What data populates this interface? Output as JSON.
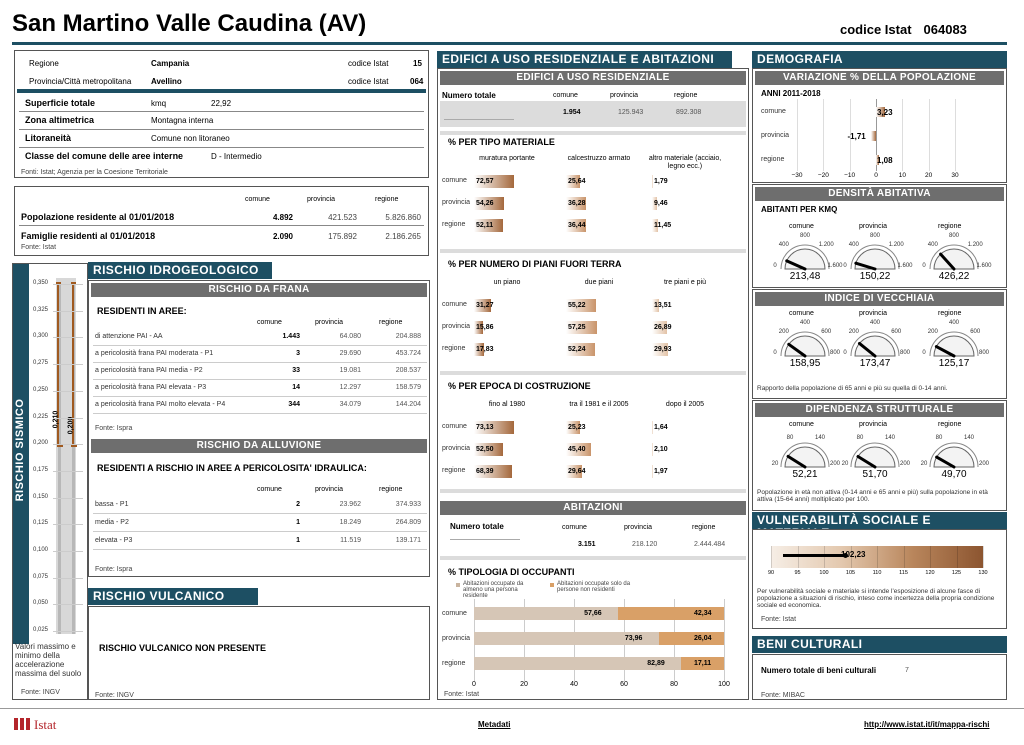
{
  "title": "San Martino Valle Caudina (AV)",
  "istat_label": "codice Istat",
  "istat_code": "064083",
  "info": {
    "regione_l": "Regione",
    "regione": "Campania",
    "codice_l": "codice Istat",
    "codice_reg": "15",
    "prov_l": "Provincia/Città metropolitana",
    "prov": "Avellino",
    "codice_prov": "064",
    "sup_l": "Superficie totale",
    "sup_u": "kmq",
    "sup": "22,92",
    "zona_l": "Zona altimetrica",
    "zona": "Montagna interna",
    "lit_l": "Litoraneità",
    "lit": "Comune non litoraneo",
    "cls_l": "Classe del comune delle aree interne",
    "cls": "D - Intermedio",
    "fonte": "Fonti: Istat; Agenzia per la Coesione Territoriale"
  },
  "pop": {
    "h": [
      "comune",
      "provincia",
      "regione"
    ],
    "r1": {
      "l": "Popolazione residente al 01/01/2018",
      "v": [
        "4.892",
        "421.523",
        "5.826.860"
      ]
    },
    "r2": {
      "l": "Famiglie residenti al 01/01/2018",
      "v": [
        "2.090",
        "175.892",
        "2.186.265"
      ]
    },
    "fonte": "Fonte: Istat"
  },
  "sism": {
    "title": "RISCHIO SISMICO",
    "ticks": [
      "0,350",
      "0,325",
      "0,300",
      "0,275",
      "0,250",
      "0,225",
      "0,200",
      "0,175",
      "0,150",
      "0,125",
      "0,100",
      "0,075",
      "0,050",
      "0,025"
    ],
    "v": [
      "0,210",
      "0,200"
    ],
    "note": "Valori massimo e minimo della accelerazione massima del suolo",
    "fonte": "Fonte: INGV"
  },
  "idro": {
    "title": "RISCHIO IDROGEOLOGICO",
    "frana": "RISCHIO DA FRANA",
    "res": "RESIDENTI IN AREE:",
    "h": [
      "comune",
      "provincia",
      "regione"
    ],
    "rows": [
      {
        "l": "di attenzione PAI - AA",
        "v": [
          "1.443",
          "64.080",
          "204.888"
        ]
      },
      {
        "l": "a pericolosità frana PAI moderata - P1",
        "v": [
          "3",
          "29.690",
          "453.724"
        ]
      },
      {
        "l": "a pericolosità frana PAI media - P2",
        "v": [
          "33",
          "19.081",
          "208.537"
        ]
      },
      {
        "l": "a pericolosità frana PAI elevata - P3",
        "v": [
          "14",
          "12.297",
          "158.579"
        ]
      },
      {
        "l": "a pericolosità frana PAI molto elevata - P4",
        "v": [
          "344",
          "34.079",
          "144.204"
        ]
      }
    ],
    "fonte": "Fonte: Ispra",
    "all": "RISCHIO DA ALLUVIONE",
    "res2": "RESIDENTI A RISCHIO IN AREE A PERICOLOSITA' IDRAULICA:",
    "rows2": [
      {
        "l": "bassa - P1",
        "v": [
          "2",
          "23.962",
          "374.933"
        ]
      },
      {
        "l": "media - P2",
        "v": [
          "1",
          "18.249",
          "264.809"
        ]
      },
      {
        "l": "elevata - P3",
        "v": [
          "1",
          "11.519",
          "139.171"
        ]
      }
    ],
    "fonte2": "Fonte: Ispra"
  },
  "vulc": {
    "title": "RISCHIO VULCANICO",
    "text": "RISCHIO VULCANICO NON PRESENTE",
    "fonte": "Fonte: INGV"
  },
  "edif": {
    "title": "EDIFICI A USO RESIDENZIALE E ABITAZIONI",
    "sub": "EDIFICI A USO RESIDENZIALE",
    "nt": "Numero totale",
    "h": [
      "comune",
      "provincia",
      "regione"
    ],
    "v": [
      "1.954",
      "125.943",
      "892.308"
    ],
    "mat_t": "% PER TIPO MATERIALE",
    "mat_h": [
      "muratura portante",
      "calcestruzzo armato",
      "altro materiale (acciaio, legno ecc.)"
    ],
    "rl": [
      "comune",
      "provincia",
      "regione"
    ],
    "mat": [
      [
        "72,57",
        "25,64",
        "1,79"
      ],
      [
        "54,26",
        "36,28",
        "9,46"
      ],
      [
        "52,11",
        "36,44",
        "11,45"
      ]
    ],
    "pia_t": "% PER NUMERO DI PIANI FUORI TERRA",
    "pia_h": [
      "un piano",
      "due piani",
      "tre piani e più"
    ],
    "pia": [
      [
        "31,27",
        "55,22",
        "13,51"
      ],
      [
        "15,86",
        "57,25",
        "26,89"
      ],
      [
        "17,83",
        "52,24",
        "29,93"
      ]
    ],
    "epo_t": "% PER EPOCA DI COSTRUZIONE",
    "epo_h": [
      "fino al 1980",
      "tra il 1981 e il 2005",
      "dopo il 2005"
    ],
    "epo": [
      [
        "73,13",
        "25,23",
        "1,64"
      ],
      [
        "52,50",
        "45,40",
        "2,10"
      ],
      [
        "68,39",
        "29,64",
        "1,97"
      ]
    ],
    "ab": "ABITAZIONI",
    "ab_v": [
      "3.151",
      "218.120",
      "2.444.484"
    ],
    "occ_t": "% TIPOLOGIA DI OCCUPANTI",
    "occ_l1": "Abitazioni occupate da almeno una persona residente",
    "occ_l2": "Abitazioni occupate solo da persone non residenti",
    "occ": [
      [
        "57,66",
        "42,34"
      ],
      [
        "73,96",
        "26,04"
      ],
      [
        "82,89",
        "17,11"
      ]
    ],
    "axis": [
      "0",
      "20",
      "40",
      "60",
      "80",
      "100"
    ],
    "fonte": "Fonte: Istat"
  },
  "demo": {
    "title": "DEMOGRAFIA",
    "var": "VARIAZIONE % DELLA POPOLAZIONE",
    "anni": "ANNI 2011-2018",
    "rl": [
      "comune",
      "provincia",
      "regione"
    ],
    "vv": [
      "3,23",
      "-1,71",
      "1,08"
    ],
    "ax": [
      "−30",
      "−20",
      "−10",
      "0",
      "10",
      "20",
      "30"
    ],
    "dens": "DENSITÀ ABITATIVA",
    "dens_s": "ABITANTI PER KMQ",
    "gh": [
      "comune",
      "provincia",
      "regione"
    ],
    "dens_v": [
      "213,48",
      "150,22",
      "426,22"
    ],
    "dens_sc": [
      "0",
      "400",
      "800",
      "1.200",
      "1.600"
    ],
    "vec": "INDICE DI VECCHIAIA",
    "vec_v": [
      "158,95",
      "173,47",
      "125,17"
    ],
    "vec_sc": [
      "0",
      "200",
      "400",
      "600",
      "800"
    ],
    "vec_n": "Rapporto della popolazione di 65 anni e più su quella di 0-14 anni.",
    "dip": "DIPENDENZA STRUTTURALE",
    "dip_v": [
      "52,21",
      "51,70",
      "49,70"
    ],
    "dip_sc": [
      "20",
      "80",
      "140",
      "200"
    ],
    "dip_n": "Popolazione in età non attiva (0-14 anni e 65 anni e più) sulla popolazione in età attiva (15-64 anni) moltiplicato per 100.",
    "vul": "VULNERABILITÀ SOCIALE E MATERIALE",
    "vul_v": "102,23",
    "vul_ax": [
      "90",
      "95",
      "100",
      "105",
      "110",
      "115",
      "120",
      "125",
      "130"
    ],
    "vul_n": "Per vulnerabilità sociale e materiale si intende l'esposizione di alcune fasce di popolazione a situazioni di rischio, inteso come incertezza della propria condizione sociale ed economica.",
    "vul_f": "Fonte: Istat"
  },
  "beni": {
    "title": "BENI CULTURALI",
    "l": "Numero totale di beni culturali",
    "v": "7",
    "fonte": "Fonte: MIBAC"
  },
  "footer": {
    "logo": "Istat",
    "meta": "Metadati",
    "url": "http://www.istat.it/it/mappa-rischi"
  },
  "colors": {
    "teal": "#1d4f63",
    "grey": "#6e6e6e",
    "bar1": "#8a5a35",
    "bar2": "#c79a78",
    "bar3": "#e8d6c6"
  }
}
